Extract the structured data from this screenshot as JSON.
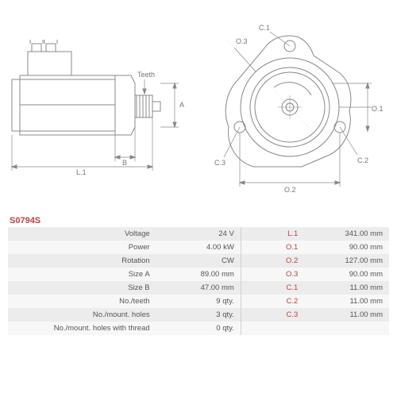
{
  "part_code": "S0794S",
  "diagrams": {
    "side_view": {
      "labels": {
        "teeth": "Teeth",
        "A": "A",
        "B": "B",
        "L1": "L.1"
      },
      "stroke_color": "#888888",
      "dimension_color": "#888888",
      "text_color": "#777777",
      "fontsize": 9
    },
    "front_view": {
      "labels": {
        "O1": "O.1",
        "O2": "O.2",
        "O3": "O.3",
        "C1": "C.1",
        "C2": "C.2",
        "C3": "C.3"
      },
      "stroke_color": "#888888",
      "text_color": "#777777",
      "fontsize": 9
    }
  },
  "table": {
    "background_odd": "#ececec",
    "background_even": "#f7f7f7",
    "text_color": "#555555",
    "label2_color": "#c04040",
    "fontsize": 9.5,
    "rows": [
      {
        "label1": "Voltage",
        "val1": "24 V",
        "label2": "L.1",
        "val2": "341.00 mm"
      },
      {
        "label1": "Power",
        "val1": "4.00 kW",
        "label2": "O.1",
        "val2": "90.00 mm"
      },
      {
        "label1": "Rotation",
        "val1": "CW",
        "label2": "O.2",
        "val2": "127.00 mm"
      },
      {
        "label1": "Size A",
        "val1": "89.00 mm",
        "label2": "O.3",
        "val2": "90.00 mm"
      },
      {
        "label1": "Size B",
        "val1": "47.00 mm",
        "label2": "C.1",
        "val2": "11.00 mm"
      },
      {
        "label1": "No./teeth",
        "val1": "9 qty.",
        "label2": "C.2",
        "val2": "11.00 mm"
      },
      {
        "label1": "No./mount. holes",
        "val1": "3 qty.",
        "label2": "C.3",
        "val2": "11.00 mm"
      },
      {
        "label1": "No./mount. holes with thread",
        "val1": "0 qty.",
        "label2": "",
        "val2": ""
      }
    ]
  }
}
